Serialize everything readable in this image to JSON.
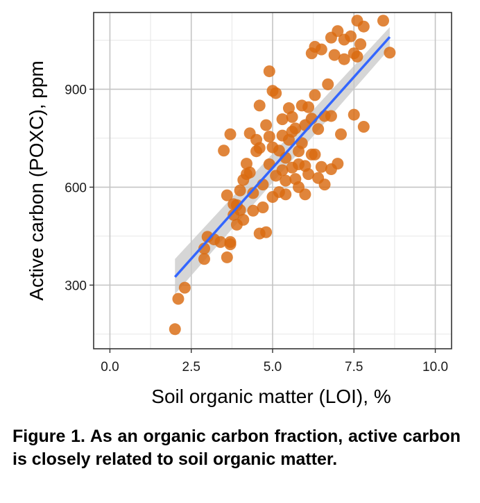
{
  "caption": "Figure 1. As an organic carbon fraction, active carbon is closely related to soil organic matter.",
  "chart_data": {
    "type": "scatter",
    "xlabel": "Soil organic matter (LOI), %",
    "ylabel": "Active carbon (POXC), ppm",
    "xlim": [
      -0.5,
      10.5
    ],
    "ylim": [
      105,
      1135
    ],
    "x_ticks": [
      0.0,
      2.5,
      5.0,
      7.5,
      10.0
    ],
    "x_tick_labels": [
      "0.0",
      "2.5",
      "5.0",
      "7.5",
      "10.0"
    ],
    "y_ticks": [
      300,
      600,
      900
    ],
    "y_tick_labels": [
      "300",
      "600",
      "900"
    ],
    "grid": true,
    "colors": {
      "points": "#d96a10",
      "fit_line": "#3366ff",
      "confidence_band": "#c8c8c8",
      "panel_border": "#333333",
      "major_grid": "#c4c4c4",
      "minor_grid": "#e6e6e6"
    },
    "fit_line": {
      "x": [
        2.0,
        8.6
      ],
      "y": [
        325,
        1060
      ],
      "band_upper": [
        380,
        1090
      ],
      "band_lower": [
        272,
        1025
      ]
    },
    "points": [
      {
        "x": 2.0,
        "y": 165
      },
      {
        "x": 2.1,
        "y": 258
      },
      {
        "x": 2.3,
        "y": 292
      },
      {
        "x": 2.9,
        "y": 412
      },
      {
        "x": 2.9,
        "y": 380
      },
      {
        "x": 3.0,
        "y": 448
      },
      {
        "x": 3.2,
        "y": 440
      },
      {
        "x": 3.4,
        "y": 432
      },
      {
        "x": 3.6,
        "y": 385
      },
      {
        "x": 3.7,
        "y": 425
      },
      {
        "x": 3.7,
        "y": 432
      },
      {
        "x": 3.6,
        "y": 575
      },
      {
        "x": 3.8,
        "y": 515
      },
      {
        "x": 3.8,
        "y": 548
      },
      {
        "x": 3.9,
        "y": 485
      },
      {
        "x": 3.5,
        "y": 712
      },
      {
        "x": 3.7,
        "y": 762
      },
      {
        "x": 4.0,
        "y": 590
      },
      {
        "x": 4.1,
        "y": 622
      },
      {
        "x": 4.2,
        "y": 640
      },
      {
        "x": 4.2,
        "y": 672
      },
      {
        "x": 4.3,
        "y": 765
      },
      {
        "x": 4.4,
        "y": 582
      },
      {
        "x": 4.4,
        "y": 528
      },
      {
        "x": 4.5,
        "y": 745
      },
      {
        "x": 4.5,
        "y": 710
      },
      {
        "x": 4.6,
        "y": 850
      },
      {
        "x": 4.6,
        "y": 458
      },
      {
        "x": 4.7,
        "y": 538
      },
      {
        "x": 4.7,
        "y": 608
      },
      {
        "x": 4.8,
        "y": 462
      },
      {
        "x": 4.8,
        "y": 790
      },
      {
        "x": 4.9,
        "y": 670
      },
      {
        "x": 4.9,
        "y": 955
      },
      {
        "x": 5.0,
        "y": 895
      },
      {
        "x": 5.0,
        "y": 570
      },
      {
        "x": 5.0,
        "y": 722
      },
      {
        "x": 5.1,
        "y": 635
      },
      {
        "x": 5.1,
        "y": 888
      },
      {
        "x": 5.2,
        "y": 585
      },
      {
        "x": 5.2,
        "y": 712
      },
      {
        "x": 5.3,
        "y": 808
      },
      {
        "x": 5.3,
        "y": 758
      },
      {
        "x": 5.4,
        "y": 690
      },
      {
        "x": 5.4,
        "y": 578
      },
      {
        "x": 5.5,
        "y": 842
      },
      {
        "x": 5.5,
        "y": 745
      },
      {
        "x": 5.6,
        "y": 660
      },
      {
        "x": 5.6,
        "y": 815
      },
      {
        "x": 5.7,
        "y": 625
      },
      {
        "x": 5.7,
        "y": 780
      },
      {
        "x": 5.8,
        "y": 710
      },
      {
        "x": 5.8,
        "y": 600
      },
      {
        "x": 5.9,
        "y": 850
      },
      {
        "x": 5.9,
        "y": 735
      },
      {
        "x": 6.0,
        "y": 665
      },
      {
        "x": 6.0,
        "y": 578
      },
      {
        "x": 6.1,
        "y": 845
      },
      {
        "x": 6.1,
        "y": 640
      },
      {
        "x": 6.2,
        "y": 700
      },
      {
        "x": 6.2,
        "y": 810
      },
      {
        "x": 6.3,
        "y": 882
      },
      {
        "x": 6.4,
        "y": 778
      },
      {
        "x": 6.4,
        "y": 628
      },
      {
        "x": 6.5,
        "y": 662
      },
      {
        "x": 6.6,
        "y": 608
      },
      {
        "x": 6.6,
        "y": 818
      },
      {
        "x": 6.7,
        "y": 915
      },
      {
        "x": 6.8,
        "y": 818
      },
      {
        "x": 6.8,
        "y": 655
      },
      {
        "x": 6.9,
        "y": 1005
      },
      {
        "x": 7.0,
        "y": 672
      },
      {
        "x": 7.1,
        "y": 762
      },
      {
        "x": 7.2,
        "y": 992
      },
      {
        "x": 6.2,
        "y": 1010
      },
      {
        "x": 6.3,
        "y": 1030
      },
      {
        "x": 6.5,
        "y": 1022
      },
      {
        "x": 6.8,
        "y": 1058
      },
      {
        "x": 7.0,
        "y": 1078
      },
      {
        "x": 7.2,
        "y": 1052
      },
      {
        "x": 7.4,
        "y": 1062
      },
      {
        "x": 7.5,
        "y": 1010
      },
      {
        "x": 7.6,
        "y": 1110
      },
      {
        "x": 7.6,
        "y": 1000
      },
      {
        "x": 7.7,
        "y": 1038
      },
      {
        "x": 7.8,
        "y": 1092
      },
      {
        "x": 7.5,
        "y": 822
      },
      {
        "x": 7.8,
        "y": 785
      },
      {
        "x": 8.4,
        "y": 1110
      },
      {
        "x": 8.6,
        "y": 1012
      },
      {
        "x": 4.0,
        "y": 530
      },
      {
        "x": 4.3,
        "y": 645
      },
      {
        "x": 4.6,
        "y": 720
      },
      {
        "x": 5.4,
        "y": 620
      },
      {
        "x": 5.8,
        "y": 670
      },
      {
        "x": 6.0,
        "y": 790
      },
      {
        "x": 6.3,
        "y": 700
      },
      {
        "x": 5.6,
        "y": 770
      },
      {
        "x": 4.9,
        "y": 755
      },
      {
        "x": 5.3,
        "y": 652
      },
      {
        "x": 4.1,
        "y": 500
      },
      {
        "x": 3.9,
        "y": 545
      }
    ]
  }
}
